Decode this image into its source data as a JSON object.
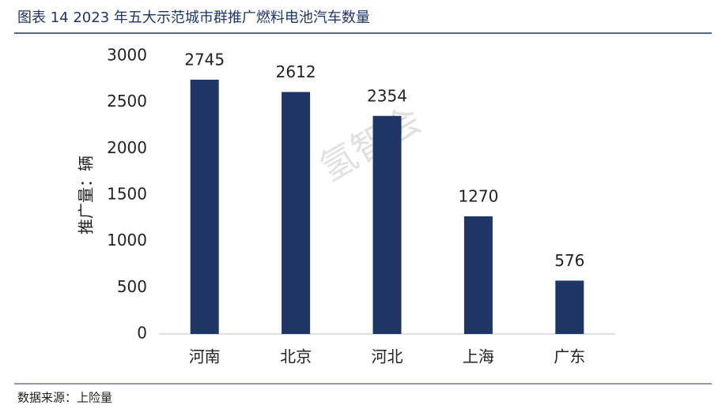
{
  "chart_data": {
    "type": "bar",
    "title": "图表 14 2023 年五大示范城市群推广燃料电池汽车数量",
    "y_label": "推广量：辆",
    "source": "数据来源：上险量",
    "watermark": "氢智会",
    "categories": [
      "河南",
      "北京",
      "河北",
      "上海",
      "广东"
    ],
    "values": [
      2745,
      2612,
      2354,
      1270,
      576
    ],
    "color": "#1f3566",
    "ylim": [
      0,
      3000
    ],
    "yticks": [
      0,
      500,
      1000,
      1500,
      2000,
      2500,
      3000
    ],
    "grid": false
  }
}
